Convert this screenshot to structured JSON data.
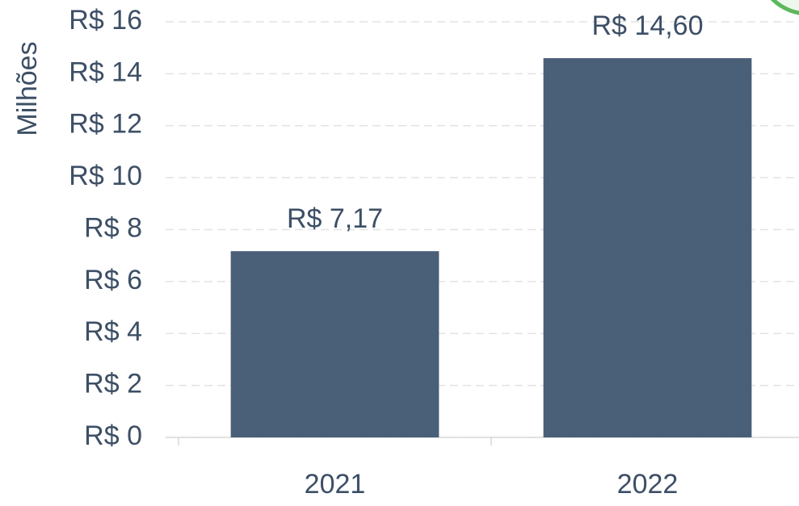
{
  "chart_data": {
    "type": "bar",
    "y_label": "Milhões",
    "categories": [
      "2021",
      "2022"
    ],
    "values": [
      7.17,
      14.6
    ],
    "value_labels": [
      "R$ 7,17",
      "R$ 14,60"
    ],
    "color": "#4a5f78",
    "ylim": [
      0,
      16
    ],
    "yticks": [
      {
        "value": 0,
        "label": "R$ 0"
      },
      {
        "value": 2,
        "label": "R$ 2"
      },
      {
        "value": 4,
        "label": "R$ 4"
      },
      {
        "value": 6,
        "label": "R$ 6"
      },
      {
        "value": 8,
        "label": "R$ 8"
      },
      {
        "value": 10,
        "label": "R$ 10"
      },
      {
        "value": 12,
        "label": "R$ 12"
      },
      {
        "value": 14,
        "label": "R$ 14"
      },
      {
        "value": 16,
        "label": "R$ 16"
      }
    ],
    "grid": true
  }
}
